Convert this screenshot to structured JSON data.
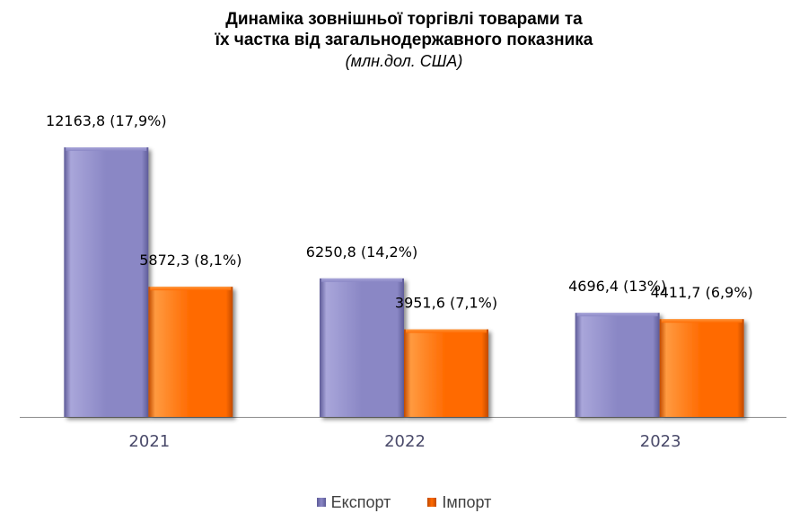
{
  "chart_data": {
    "type": "bar",
    "title_lines": [
      "Динаміка зовнішньої торгівлі товарами та",
      "їх частка від загальнодержавного показника"
    ],
    "subtitle": "(млн.дол. США)",
    "categories": [
      "2021",
      "2022",
      "2023"
    ],
    "series": [
      {
        "name": "Експорт",
        "color": "#8A87C5",
        "values": [
          12163.8,
          6250.8,
          4696.4
        ],
        "labels": [
          "12163,8 (17,9%)",
          "6250,8 (14,2%)",
          "4696,4 (13%)"
        ]
      },
      {
        "name": "Імпорт",
        "color": "#FF6A00",
        "values": [
          5872.3,
          3951.6,
          4411.7
        ],
        "labels": [
          "5872,3 (8,1%)",
          "3951,6 (7,1%)",
          "4411,7 (6,9%)"
        ]
      }
    ],
    "ylim": [
      0,
      13500
    ],
    "grid": false,
    "legend_position": "bottom"
  }
}
